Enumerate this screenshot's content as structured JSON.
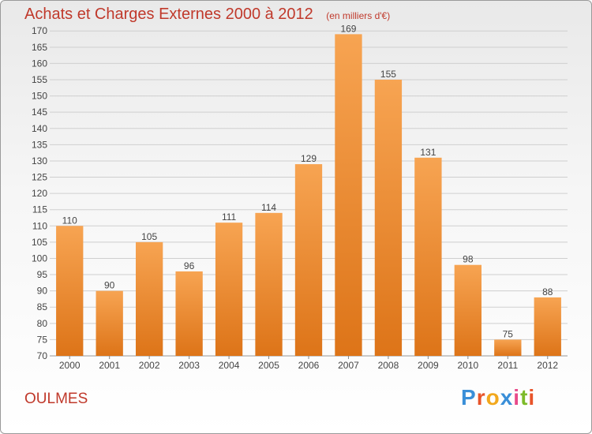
{
  "chart_data": {
    "type": "bar",
    "title": "Achats et Charges Externes 2000 à 2012",
    "subtitle": "(en milliers d'€)",
    "categories": [
      "2000",
      "2001",
      "2002",
      "2003",
      "2004",
      "2005",
      "2006",
      "2007",
      "2008",
      "2009",
      "2010",
      "2011",
      "2012"
    ],
    "values": [
      110,
      90,
      105,
      96,
      111,
      114,
      129,
      169,
      155,
      131,
      98,
      75,
      88
    ],
    "yticks": [
      70,
      75,
      80,
      85,
      90,
      95,
      100,
      105,
      110,
      115,
      120,
      125,
      130,
      135,
      140,
      145,
      150,
      155,
      160,
      165,
      170
    ],
    "ylim": [
      70,
      172
    ],
    "xlabel": "",
    "ylabel": "",
    "grid": true,
    "bar_color": "#f0913a"
  },
  "commune": "OULMES",
  "logo": {
    "letters": [
      "P",
      "r",
      "o",
      "x",
      "i",
      "t",
      "i"
    ],
    "colors": [
      "#3a8fd8",
      "#e8542a",
      "#f2a81d",
      "#3a8fd8",
      "#e84a8a",
      "#7dbb2a",
      "#e8542a"
    ]
  }
}
